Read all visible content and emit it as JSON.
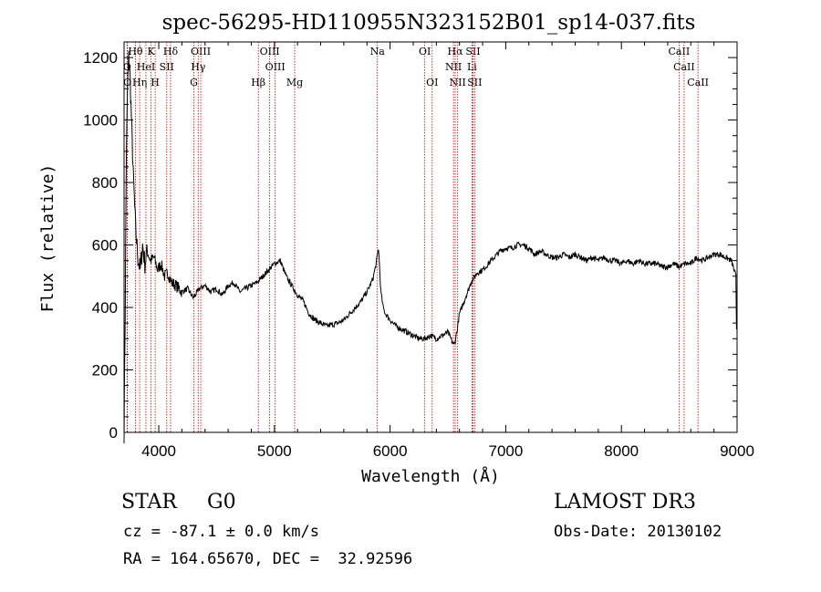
{
  "chart_data": {
    "type": "line",
    "title": "spec-56295-HD110955N323152B01_sp14-037.fits",
    "xlabel": "Wavelength (Å)",
    "ylabel": "Flux (relative)",
    "xlim": [
      3700,
      9000
    ],
    "ylim": [
      0,
      1250
    ],
    "xticks": [
      4000,
      5000,
      6000,
      7000,
      8000,
      9000
    ],
    "yticks": [
      0,
      200,
      400,
      600,
      800,
      1000,
      1200
    ],
    "grid": false,
    "legend": "none",
    "series": [
      {
        "values_x": [
          3700,
          3710,
          3720,
          3730,
          3740,
          3750,
          3760,
          3770,
          3780,
          3800,
          3820,
          3840,
          3860,
          3880,
          3900,
          3930,
          3960,
          3990,
          4020,
          4050,
          4080,
          4110,
          4150,
          4200,
          4250,
          4300,
          4350,
          4400,
          4450,
          4500,
          4550,
          4600,
          4650,
          4700,
          4750,
          4800,
          4850,
          4900,
          4950,
          5000,
          5050,
          5100,
          5150,
          5200,
          5250,
          5300,
          5350,
          5400,
          5450,
          5500,
          5550,
          5600,
          5650,
          5700,
          5750,
          5800,
          5850,
          5880,
          5900,
          5920,
          5940,
          5960,
          6000,
          6050,
          6100,
          6150,
          6200,
          6250,
          6300,
          6350,
          6400,
          6450,
          6500,
          6550,
          6563,
          6580,
          6600,
          6650,
          6700,
          6750,
          6800,
          6850,
          6900,
          6950,
          7000,
          7050,
          7100,
          7150,
          7200,
          7250,
          7300,
          7350,
          7400,
          7450,
          7500,
          7550,
          7600,
          7650,
          7700,
          7750,
          7800,
          7850,
          7900,
          7950,
          8000,
          8050,
          8100,
          8150,
          8200,
          8250,
          8300,
          8350,
          8400,
          8450,
          8500,
          8550,
          8600,
          8650,
          8700,
          8750,
          8800,
          8850,
          8900,
          8950,
          8990,
          8995
        ],
        "values_y": [
          0,
          400,
          900,
          1100,
          1200,
          1150,
          1050,
          930,
          820,
          650,
          560,
          520,
          600,
          540,
          580,
          550,
          560,
          520,
          540,
          500,
          510,
          480,
          470,
          450,
          460,
          430,
          460,
          470,
          450,
          460,
          440,
          470,
          480,
          450,
          460,
          470,
          480,
          500,
          520,
          540,
          550,
          500,
          470,
          440,
          420,
          380,
          360,
          350,
          340,
          345,
          350,
          360,
          380,
          400,
          420,
          450,
          490,
          540,
          590,
          450,
          400,
          380,
          360,
          340,
          330,
          320,
          310,
          300,
          300,
          310,
          300,
          310,
          320,
          280,
          290,
          330,
          380,
          430,
          480,
          510,
          520,
          540,
          560,
          580,
          590,
          590,
          600,
          600,
          590,
          570,
          580,
          570,
          560,
          560,
          570,
          560,
          570,
          560,
          550,
          560,
          550,
          560,
          550,
          550,
          540,
          550,
          540,
          550,
          540,
          540,
          540,
          530,
          530,
          540,
          530,
          540,
          540,
          560,
          550,
          560,
          570,
          570,
          560,
          550,
          500,
          330
        ]
      }
    ],
    "lines": [
      {
        "label": "Hθ",
        "x": 3798
      },
      {
        "label": "K",
        "x": 3934
      },
      {
        "label": "Hδ",
        "x": 4102
      },
      {
        "label": "OIII",
        "x": 4363
      },
      {
        "label": "OIII",
        "x": 4959
      },
      {
        "label": "Na",
        "x": 5890
      },
      {
        "label": "OI",
        "x": 6300
      },
      {
        "label": "Hα",
        "x": 6563
      },
      {
        "label": "SII",
        "x": 6717
      },
      {
        "label": "CaII",
        "x": 8498
      },
      {
        "label": "O",
        "x": 3727
      },
      {
        "label": "HeI",
        "x": 3889
      },
      {
        "label": "SII",
        "x": 4069
      },
      {
        "label": "Hγ",
        "x": 4341
      },
      {
        "label": "OIII",
        "x": 5007
      },
      {
        "label": "NII",
        "x": 6548
      },
      {
        "label": "Li",
        "x": 6708
      },
      {
        "label": "CaII",
        "x": 8542
      },
      {
        "label": "O",
        "x": 3729
      },
      {
        "label": "Hη",
        "x": 3835
      },
      {
        "label": "H",
        "x": 3969
      },
      {
        "label": "G",
        "x": 4304
      },
      {
        "label": "Hβ",
        "x": 4861
      },
      {
        "label": "Mg",
        "x": 5175
      },
      {
        "label": "OI",
        "x": 6364
      },
      {
        "label": "NII",
        "x": 6584
      },
      {
        "label": "SII",
        "x": 6731
      },
      {
        "label": "CaII",
        "x": 8662
      }
    ]
  },
  "info": {
    "class": "STAR",
    "subclass": "G0",
    "survey": "LAMOST DR3",
    "cz": "cz = -87.1 ± 0.0 km/s",
    "obs_date": "Obs-Date: 20130102",
    "radec": "RA = 164.65670, DEC =  32.92596"
  }
}
